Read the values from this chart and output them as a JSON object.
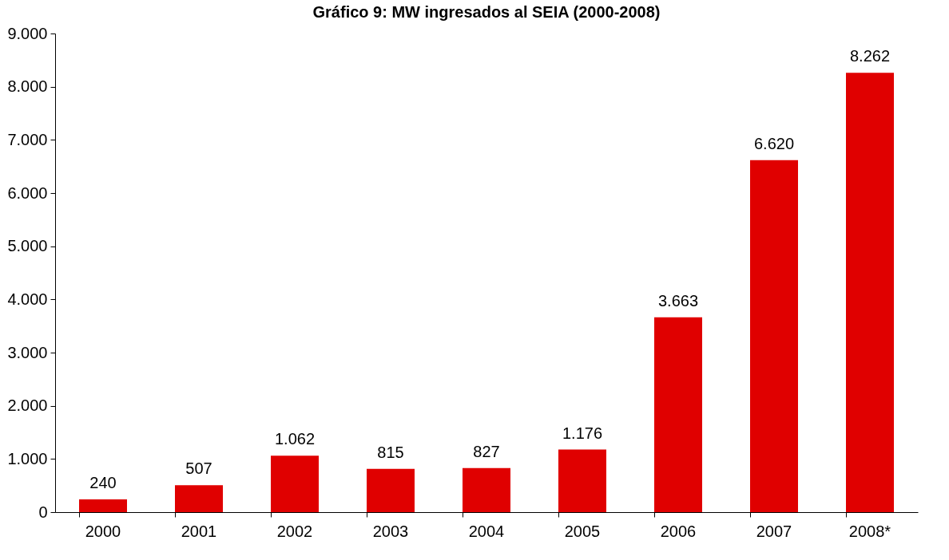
{
  "chart_data": {
    "type": "bar",
    "title": "Gráfico 9: MW ingresados al SEIA (2000-2008)",
    "categories": [
      "2000",
      "2001",
      "2002",
      "2003",
      "2004",
      "2005",
      "2006",
      "2007",
      "2008*"
    ],
    "values": [
      240,
      507,
      1062,
      815,
      827,
      1176,
      3663,
      6620,
      8262
    ],
    "value_labels": [
      "240",
      "507",
      "1.062",
      "815",
      "827",
      "1.176",
      "3.663",
      "6.620",
      "8.262"
    ],
    "color": "#e00000",
    "ylim": [
      0,
      9000
    ],
    "yticks": [
      {
        "value": 0,
        "label": "0"
      },
      {
        "value": 1000,
        "label": "1.000"
      },
      {
        "value": 2000,
        "label": "2.000"
      },
      {
        "value": 3000,
        "label": "3.000"
      },
      {
        "value": 4000,
        "label": "4.000"
      },
      {
        "value": 5000,
        "label": "5.000"
      },
      {
        "value": 6000,
        "label": "6.000"
      },
      {
        "value": 7000,
        "label": "7.000"
      },
      {
        "value": 8000,
        "label": "8.000"
      },
      {
        "value": 9000,
        "label": "9.000"
      }
    ],
    "grid": false
  }
}
